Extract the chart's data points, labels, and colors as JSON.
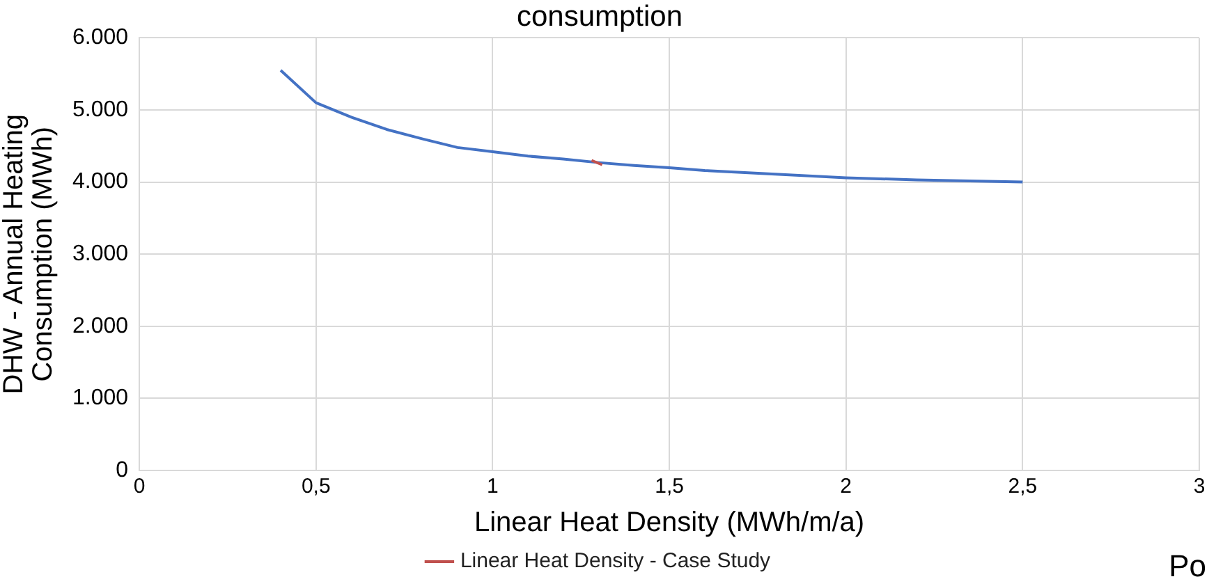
{
  "chart_data": {
    "type": "line",
    "title": "consumption",
    "xlabel": "Linear Heat Density (MWh/m/a)",
    "ylabel": "DHW - Annual Heating Consumption (MWh)",
    "annotations": [
      "Po"
    ],
    "series": [
      {
        "color": "#4472c4",
        "x": [
          0.4,
          0.5,
          0.6,
          0.7,
          0.8,
          0.9,
          1.0,
          1.1,
          1.2,
          1.3,
          1.4,
          1.5,
          1.6,
          1.8,
          2.0,
          2.2,
          2.4,
          2.5
        ],
        "values": [
          5550,
          5100,
          4900,
          4730,
          4600,
          4480,
          4420,
          4360,
          4320,
          4270,
          4230,
          4200,
          4160,
          4110,
          4060,
          4030,
          4010,
          4000
        ]
      },
      {
        "name": "Linear Heat Density - Case Study",
        "color": "#c0504d",
        "x": [
          1.28,
          1.31
        ],
        "values": [
          4300,
          4240
        ]
      }
    ],
    "xlim": [
      0,
      3
    ],
    "xticks": [
      0,
      {
        "value": 0.5,
        "label": "0,5"
      },
      1,
      {
        "value": 1.5,
        "label": "1,5"
      },
      2,
      {
        "value": 2.5,
        "label": "2,5"
      },
      3
    ],
    "ylim": [
      0,
      6000
    ],
    "yticks": [
      0,
      {
        "value": 1000,
        "label": "1.000"
      },
      {
        "value": 2000,
        "label": "2.000"
      },
      {
        "value": 3000,
        "label": "3.000"
      },
      {
        "value": 4000,
        "label": "4.000"
      },
      {
        "value": 5000,
        "label": "5.000"
      },
      {
        "value": 6000,
        "label": "6.000"
      }
    ],
    "grid": true,
    "legend": "bottom",
    "marker": "none",
    "line_style": "solid"
  }
}
